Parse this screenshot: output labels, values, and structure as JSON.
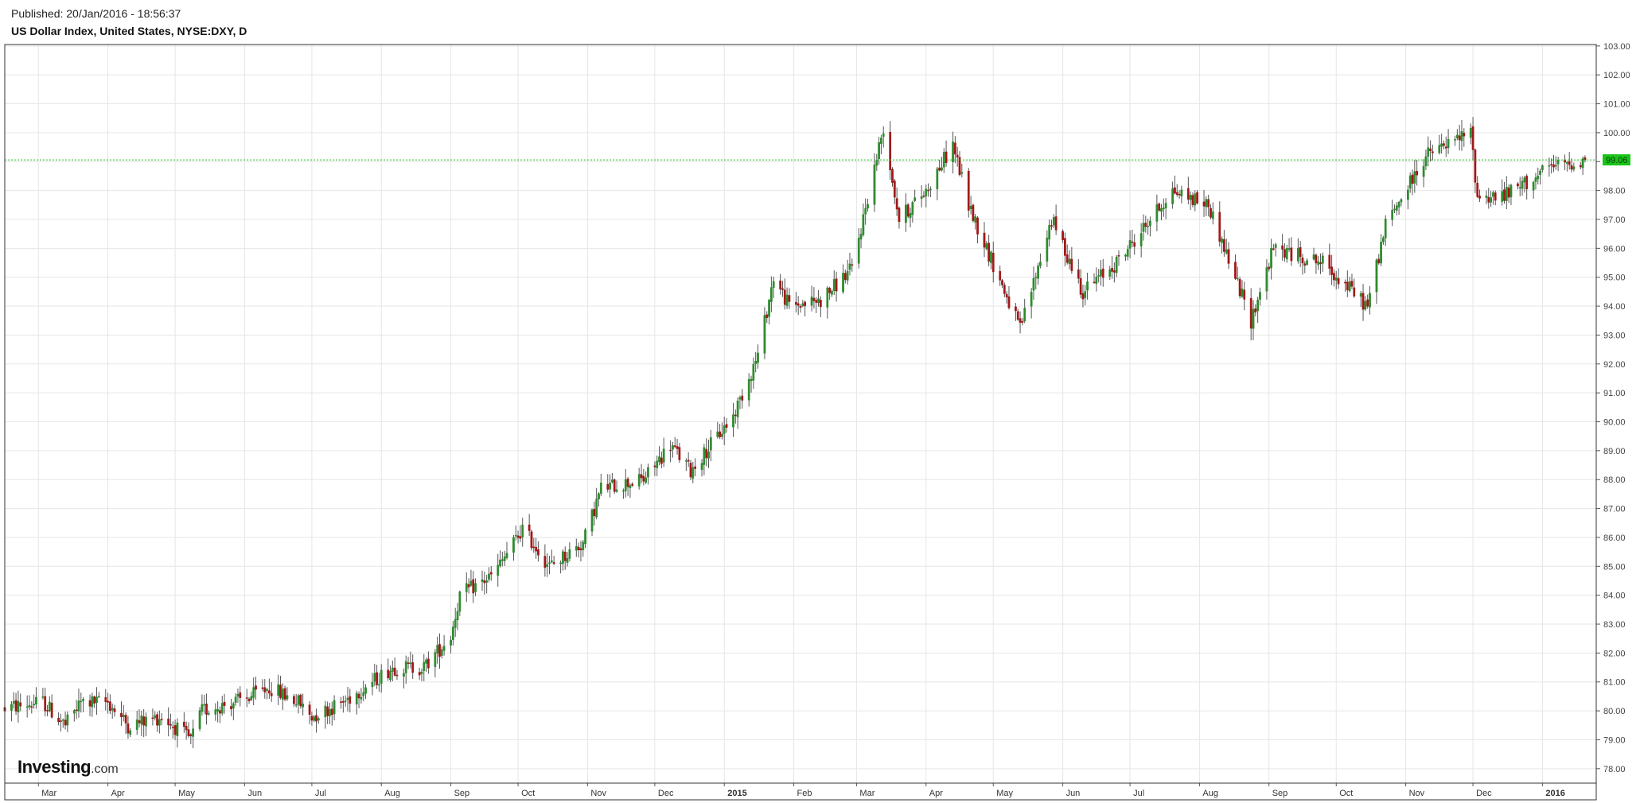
{
  "header": {
    "published": "Published: 20/Jan/2016 - 18:56:37",
    "title": "US Dollar Index, United States, NYSE:DXY, D"
  },
  "logo": {
    "main": "Investing",
    "suffix": ".com"
  },
  "colors": {
    "up": "#2e8b2e",
    "down": "#a01818",
    "wick": "#555555",
    "grid": "#e6e6e6",
    "frame": "#333333",
    "last_price_line": "#19c419",
    "last_price_bg": "#19c419"
  },
  "chart_data": {
    "type": "candlestick",
    "title": "US Dollar Index, United States, NYSE:DXY, D",
    "ylim": [
      77.5,
      103.05
    ],
    "y_ticks": [
      "78.00",
      "79.00",
      "80.00",
      "81.00",
      "82.00",
      "83.00",
      "84.00",
      "85.00",
      "86.00",
      "87.00",
      "88.00",
      "89.00",
      "90.00",
      "91.00",
      "92.00",
      "93.00",
      "94.00",
      "95.00",
      "96.00",
      "97.00",
      "98.00",
      "99.00",
      "100.00",
      "101.00",
      "102.00",
      "103.00"
    ],
    "x_range": [
      "2014-02-14",
      "2016-01-25"
    ],
    "x_ticks": [
      {
        "label": "Mar",
        "date": "2014-03-01"
      },
      {
        "label": "Apr",
        "date": "2014-04-01"
      },
      {
        "label": "May",
        "date": "2014-05-01"
      },
      {
        "label": "Jun",
        "date": "2014-06-01"
      },
      {
        "label": "Jul",
        "date": "2014-07-01"
      },
      {
        "label": "Aug",
        "date": "2014-08-01"
      },
      {
        "label": "Sep",
        "date": "2014-09-01"
      },
      {
        "label": "Oct",
        "date": "2014-10-01"
      },
      {
        "label": "Nov",
        "date": "2014-11-01"
      },
      {
        "label": "Dec",
        "date": "2014-12-01"
      },
      {
        "label": "2015",
        "date": "2015-01-01",
        "bold": true
      },
      {
        "label": "Feb",
        "date": "2015-02-01"
      },
      {
        "label": "Mar",
        "date": "2015-03-01"
      },
      {
        "label": "Apr",
        "date": "2015-04-01"
      },
      {
        "label": "May",
        "date": "2015-05-01"
      },
      {
        "label": "Jun",
        "date": "2015-06-01"
      },
      {
        "label": "Jul",
        "date": "2015-07-01"
      },
      {
        "label": "Aug",
        "date": "2015-08-01"
      },
      {
        "label": "Sep",
        "date": "2015-09-01"
      },
      {
        "label": "Oct",
        "date": "2015-10-01"
      },
      {
        "label": "Nov",
        "date": "2015-11-01"
      },
      {
        "label": "Dec",
        "date": "2015-12-01"
      },
      {
        "label": "2016",
        "date": "2016-01-01",
        "bold": true
      }
    ],
    "last_price": 99.06,
    "last_price_label": "99.06",
    "grid": true,
    "path_key_levels": [
      [
        "2014-02-14",
        80.1
      ],
      [
        "2014-03-03",
        80.3
      ],
      [
        "2014-03-13",
        79.5
      ],
      [
        "2014-03-20",
        80.3
      ],
      [
        "2014-04-01",
        80.3
      ],
      [
        "2014-04-10",
        79.5
      ],
      [
        "2014-04-25",
        79.8
      ],
      [
        "2014-05-08",
        79.0
      ],
      [
        "2014-05-13",
        80.0
      ],
      [
        "2014-06-01",
        80.4
      ],
      [
        "2014-06-12",
        80.8
      ],
      [
        "2014-06-25",
        80.3
      ],
      [
        "2014-07-01",
        79.8
      ],
      [
        "2014-07-15",
        80.3
      ],
      [
        "2014-08-06",
        81.5
      ],
      [
        "2014-08-20",
        81.5
      ],
      [
        "2014-09-01",
        82.6
      ],
      [
        "2014-09-05",
        84.0
      ],
      [
        "2014-09-20",
        84.7
      ],
      [
        "2014-10-03",
        86.3
      ],
      [
        "2014-10-15",
        85.0
      ],
      [
        "2014-10-30",
        85.8
      ],
      [
        "2014-11-07",
        87.7
      ],
      [
        "2014-11-26",
        88.0
      ],
      [
        "2014-12-08",
        89.2
      ],
      [
        "2014-12-17",
        88.3
      ],
      [
        "2015-01-05",
        90.2
      ],
      [
        "2015-01-16",
        92.3
      ],
      [
        "2015-01-23",
        95.0
      ],
      [
        "2015-01-30",
        94.0
      ],
      [
        "2015-02-13",
        94.2
      ],
      [
        "2015-02-27",
        95.3
      ],
      [
        "2015-03-13",
        100.2
      ],
      [
        "2015-03-20",
        97.0
      ],
      [
        "2015-04-01",
        98.0
      ],
      [
        "2015-04-13",
        99.6
      ],
      [
        "2015-04-20",
        97.5
      ],
      [
        "2015-05-13",
        93.2
      ],
      [
        "2015-05-27",
        97.0
      ],
      [
        "2015-06-10",
        94.5
      ],
      [
        "2015-06-25",
        95.5
      ],
      [
        "2015-07-20",
        98.0
      ],
      [
        "2015-08-05",
        97.5
      ],
      [
        "2015-08-24",
        93.5
      ],
      [
        "2015-09-03",
        96.0
      ],
      [
        "2015-09-25",
        95.5
      ],
      [
        "2015-10-15",
        94.0
      ],
      [
        "2015-10-23",
        96.8
      ],
      [
        "2015-11-10",
        99.2
      ],
      [
        "2015-11-30",
        100.0
      ],
      [
        "2015-12-03",
        97.8
      ],
      [
        "2015-12-15",
        97.8
      ],
      [
        "2016-01-05",
        98.8
      ],
      [
        "2016-01-20",
        99.06
      ]
    ]
  }
}
